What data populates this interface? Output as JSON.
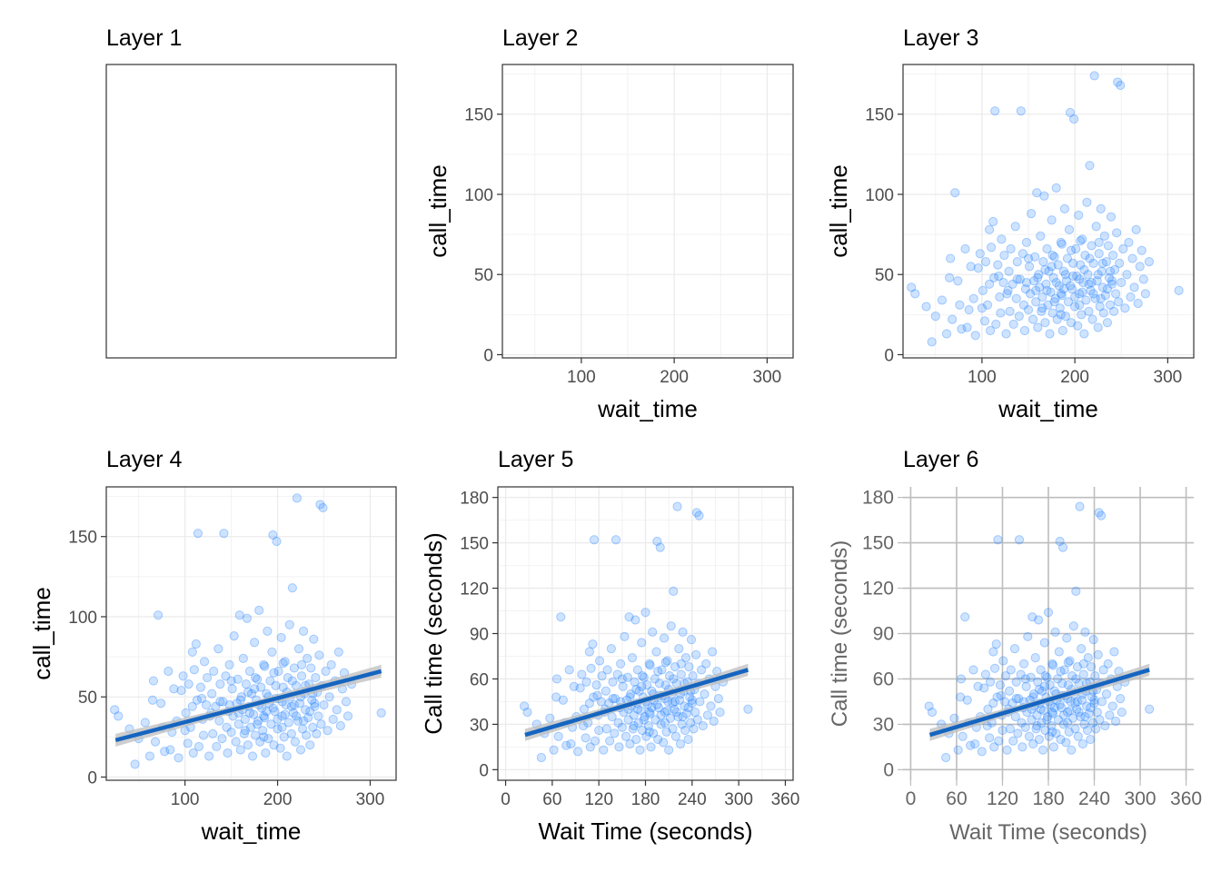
{
  "chart_data": [
    {
      "id": "p1",
      "title": "Layer 1",
      "type": "scatter",
      "theme": "empty-bordered",
      "xlabel": "",
      "ylabel": "",
      "show_points": false,
      "show_smooth": false
    },
    {
      "id": "p2",
      "title": "Layer 2",
      "type": "scatter",
      "theme": "bw",
      "xlabel": "wait_time",
      "ylabel": "call_time",
      "xlim": [
        15,
        328
      ],
      "ylim": [
        -2,
        181
      ],
      "x_ticks": [
        100,
        200,
        300
      ],
      "y_ticks": [
        0,
        50,
        100,
        150
      ],
      "x_tick_labels": [
        "100",
        "200",
        "300"
      ],
      "y_tick_labels": [
        "0",
        "50",
        "100",
        "150"
      ],
      "show_points": false,
      "show_smooth": false
    },
    {
      "id": "p3",
      "title": "Layer 3",
      "type": "scatter",
      "theme": "bw",
      "xlabel": "wait_time",
      "ylabel": "call_time",
      "xlim": [
        15,
        328
      ],
      "ylim": [
        -2,
        181
      ],
      "x_ticks": [
        100,
        200,
        300
      ],
      "y_ticks": [
        0,
        50,
        100,
        150
      ],
      "x_tick_labels": [
        "100",
        "200",
        "300"
      ],
      "y_tick_labels": [
        "0",
        "50",
        "100",
        "150"
      ],
      "show_points": true,
      "show_smooth": false
    },
    {
      "id": "p4",
      "title": "Layer 4",
      "type": "scatter",
      "theme": "bw",
      "xlabel": "wait_time",
      "ylabel": "call_time",
      "xlim": [
        15,
        328
      ],
      "ylim": [
        -2,
        181
      ],
      "x_ticks": [
        100,
        200,
        300
      ],
      "y_ticks": [
        0,
        50,
        100,
        150
      ],
      "x_tick_labels": [
        "100",
        "200",
        "300"
      ],
      "y_tick_labels": [
        "0",
        "50",
        "100",
        "150"
      ],
      "show_points": true,
      "show_smooth": true
    },
    {
      "id": "p5",
      "title": "Layer 5",
      "type": "scatter",
      "theme": "bw",
      "xlabel": "Wait Time (seconds)",
      "ylabel": "Call time (seconds)",
      "xlim": [
        -10,
        370
      ],
      "ylim": [
        -7,
        187
      ],
      "x_ticks": [
        0,
        60,
        120,
        180,
        240,
        300,
        360
      ],
      "y_ticks": [
        0,
        30,
        60,
        90,
        120,
        150,
        180
      ],
      "x_tick_labels": [
        "0",
        "60",
        "120",
        "180",
        "240",
        "300",
        "360"
      ],
      "y_tick_labels": [
        "0",
        "30",
        "60",
        "90",
        "120",
        "150",
        "180"
      ],
      "show_points": true,
      "show_smooth": true
    },
    {
      "id": "p6",
      "title": "Layer 6",
      "type": "scatter",
      "theme": "minimal-grey",
      "xlabel": "Wait Time (seconds)",
      "ylabel": "Call time (seconds)",
      "xlim": [
        -10,
        370
      ],
      "ylim": [
        -7,
        187
      ],
      "x_ticks": [
        0,
        60,
        120,
        180,
        240,
        300,
        360
      ],
      "y_ticks": [
        0,
        30,
        60,
        90,
        120,
        150,
        180
      ],
      "x_tick_labels": [
        "0",
        "60",
        "120",
        "180",
        "240",
        "300",
        "360"
      ],
      "y_tick_labels": [
        "0",
        "30",
        "60",
        "90",
        "120",
        "150",
        "180"
      ],
      "show_points": true,
      "show_smooth": true
    }
  ],
  "shared_data": {
    "point_color": "#1e7fff",
    "smooth_color": "#1565c0",
    "band_color": "#bdbdbd",
    "smooth_fit": {
      "x_start": 25,
      "y_start": 23,
      "x_end": 312,
      "y_end": 66,
      "band_half_width": 2.5
    },
    "points": [
      [
        24,
        42
      ],
      [
        28,
        38
      ],
      [
        40,
        30
      ],
      [
        46,
        8
      ],
      [
        50,
        24
      ],
      [
        57,
        34
      ],
      [
        62,
        13
      ],
      [
        65,
        48
      ],
      [
        66,
        60
      ],
      [
        68,
        22
      ],
      [
        71,
        101
      ],
      [
        74,
        46
      ],
      [
        76,
        31
      ],
      [
        78,
        16
      ],
      [
        82,
        66
      ],
      [
        84,
        17
      ],
      [
        86,
        28
      ],
      [
        88,
        55
      ],
      [
        91,
        35
      ],
      [
        93,
        12
      ],
      [
        96,
        54
      ],
      [
        98,
        63
      ],
      [
        100,
        29
      ],
      [
        101,
        40
      ],
      [
        103,
        21
      ],
      [
        104,
        58
      ],
      [
        106,
        31
      ],
      [
        108,
        78
      ],
      [
        109,
        15
      ],
      [
        110,
        67
      ],
      [
        112,
        83
      ],
      [
        113,
        48
      ],
      [
        114,
        152
      ],
      [
        115,
        19
      ],
      [
        117,
        56
      ],
      [
        119,
        36
      ],
      [
        120,
        26
      ],
      [
        121,
        72
      ],
      [
        123,
        45
      ],
      [
        124,
        62
      ],
      [
        126,
        13
      ],
      [
        127,
        38
      ],
      [
        129,
        52
      ],
      [
        130,
        27
      ],
      [
        131,
        66
      ],
      [
        133,
        44
      ],
      [
        134,
        19
      ],
      [
        136,
        80
      ],
      [
        137,
        35
      ],
      [
        138,
        58
      ],
      [
        140,
        24
      ],
      [
        141,
        47
      ],
      [
        142,
        152
      ],
      [
        144,
        63
      ],
      [
        145,
        31
      ],
      [
        146,
        15
      ],
      [
        147,
        41
      ],
      [
        148,
        70
      ],
      [
        150,
        28
      ],
      [
        151,
        55
      ],
      [
        152,
        38
      ],
      [
        153,
        88
      ],
      [
        155,
        22
      ],
      [
        156,
        46
      ],
      [
        157,
        61
      ],
      [
        158,
        33
      ],
      [
        159,
        101
      ],
      [
        160,
        17
      ],
      [
        161,
        50
      ],
      [
        162,
        42
      ],
      [
        163,
        74
      ],
      [
        164,
        27
      ],
      [
        165,
        36
      ],
      [
        166,
        58
      ],
      [
        167,
        99
      ],
      [
        168,
        20
      ],
      [
        169,
        44
      ],
      [
        170,
        66
      ],
      [
        171,
        31
      ],
      [
        172,
        52
      ],
      [
        173,
        13
      ],
      [
        174,
        39
      ],
      [
        175,
        84
      ],
      [
        176,
        26
      ],
      [
        177,
        48
      ],
      [
        178,
        61
      ],
      [
        179,
        35
      ],
      [
        180,
        104
      ],
      [
        181,
        22
      ],
      [
        182,
        56
      ],
      [
        183,
        43
      ],
      [
        184,
        29
      ],
      [
        185,
        70
      ],
      [
        186,
        37
      ],
      [
        187,
        15
      ],
      [
        188,
        52
      ],
      [
        189,
        91
      ],
      [
        190,
        24
      ],
      [
        191,
        46
      ],
      [
        192,
        60
      ],
      [
        193,
        33
      ],
      [
        194,
        78
      ],
      [
        195,
        151
      ],
      [
        196,
        20
      ],
      [
        197,
        41
      ],
      [
        198,
        57
      ],
      [
        199,
        147
      ],
      [
        200,
        30
      ],
      [
        201,
        66
      ],
      [
        202,
        49
      ],
      [
        203,
        18
      ],
      [
        204,
        87
      ],
      [
        205,
        38
      ],
      [
        206,
        56
      ],
      [
        207,
        25
      ],
      [
        208,
        72
      ],
      [
        209,
        45
      ],
      [
        210,
        13
      ],
      [
        211,
        62
      ],
      [
        212,
        34
      ],
      [
        213,
        95
      ],
      [
        214,
        50
      ],
      [
        215,
        27
      ],
      [
        216,
        118
      ],
      [
        217,
        40
      ],
      [
        218,
        68
      ],
      [
        219,
        22
      ],
      [
        220,
        57
      ],
      [
        221,
        174
      ],
      [
        222,
        35
      ],
      [
        223,
        80
      ],
      [
        224,
        46
      ],
      [
        225,
        17
      ],
      [
        226,
        63
      ],
      [
        227,
        30
      ],
      [
        228,
        91
      ],
      [
        229,
        52
      ],
      [
        230,
        42
      ],
      [
        231,
        26
      ],
      [
        232,
        74
      ],
      [
        233,
        37
      ],
      [
        234,
        58
      ],
      [
        235,
        20
      ],
      [
        236,
        68
      ],
      [
        237,
        48
      ],
      [
        238,
        31
      ],
      [
        239,
        86
      ],
      [
        240,
        44
      ],
      [
        241,
        62
      ],
      [
        242,
        27
      ],
      [
        243,
        53
      ],
      [
        244,
        38
      ],
      [
        245,
        76
      ],
      [
        246,
        170
      ],
      [
        247,
        33
      ],
      [
        248,
        57
      ],
      [
        249,
        168
      ],
      [
        250,
        45
      ],
      [
        252,
        66
      ],
      [
        254,
        29
      ],
      [
        256,
        50
      ],
      [
        258,
        70
      ],
      [
        260,
        36
      ],
      [
        262,
        60
      ],
      [
        264,
        42
      ],
      [
        266,
        78
      ],
      [
        268,
        32
      ],
      [
        270,
        55
      ],
      [
        272,
        65
      ],
      [
        274,
        47
      ],
      [
        276,
        38
      ],
      [
        280,
        58
      ],
      [
        312,
        40
      ],
      [
        150,
        60
      ],
      [
        160,
        48
      ],
      [
        170,
        40
      ],
      [
        175,
        55
      ],
      [
        180,
        45
      ],
      [
        185,
        38
      ],
      [
        190,
        50
      ],
      [
        195,
        43
      ],
      [
        200,
        36
      ],
      [
        205,
        47
      ],
      [
        210,
        53
      ],
      [
        215,
        44
      ],
      [
        220,
        38
      ],
      [
        225,
        50
      ],
      [
        230,
        57
      ],
      [
        235,
        41
      ],
      [
        240,
        46
      ],
      [
        165,
        29
      ],
      [
        185,
        25
      ],
      [
        205,
        31
      ],
      [
        178,
        33
      ],
      [
        188,
        41
      ],
      [
        198,
        49
      ],
      [
        208,
        39
      ],
      [
        218,
        45
      ],
      [
        228,
        35
      ],
      [
        238,
        52
      ],
      [
        158,
        40
      ],
      [
        168,
        53
      ],
      [
        148,
        45
      ],
      [
        138,
        47
      ],
      [
        128,
        40
      ],
      [
        118,
        49
      ],
      [
        108,
        44
      ],
      [
        196,
        65
      ],
      [
        206,
        71
      ],
      [
        216,
        60
      ],
      [
        226,
        70
      ],
      [
        186,
        69
      ],
      [
        176,
        62
      ]
    ]
  }
}
